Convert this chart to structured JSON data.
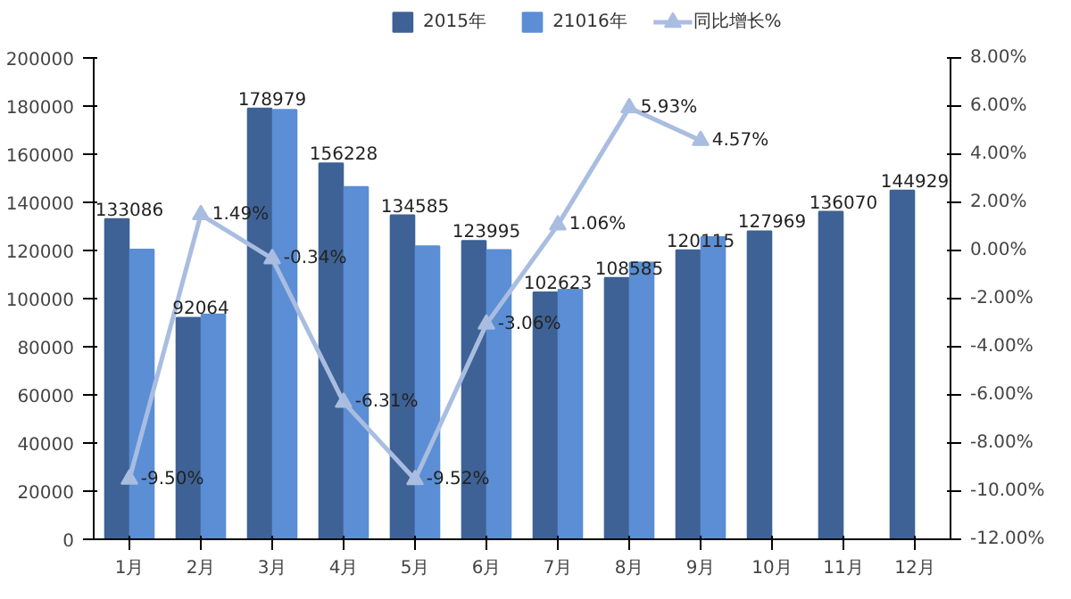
{
  "chart_data": {
    "type": "bar",
    "categories": [
      "1月",
      "2月",
      "3月",
      "4月",
      "5月",
      "6月",
      "7月",
      "8月",
      "9月",
      "10月",
      "11月",
      "12月"
    ],
    "series": [
      {
        "name": "2015年",
        "color": "#3e6296",
        "values": [
          133086,
          92064,
          178979,
          156228,
          134585,
          123995,
          102623,
          108585,
          120115,
          127969,
          136070,
          144929
        ],
        "value_labels": [
          "133086",
          "92064",
          "178979",
          "156228",
          "134585",
          "123995",
          "102623",
          "108585",
          "120115",
          "127969",
          "136070",
          "144929"
        ]
      },
      {
        "name": "21016年",
        "color": "#5b8ed4",
        "values": [
          120400,
          93400,
          178400,
          146400,
          121800,
          120200,
          103700,
          115000,
          125600,
          null,
          null,
          null
        ]
      },
      {
        "name": "同比增长%",
        "type": "line",
        "axis": "y2",
        "color": "#a9bde0",
        "marker": "triangle",
        "values": [
          -9.5,
          1.49,
          -0.34,
          -6.31,
          -9.52,
          -3.06,
          1.06,
          5.93,
          4.57,
          null,
          null,
          null
        ],
        "value_labels": [
          "-9.50%",
          "1.49%",
          "-0.34%",
          "-6.31%",
          "-9.52%",
          "-3.06%",
          "1.06%",
          "5.93%",
          "4.57%",
          null,
          null,
          null
        ]
      }
    ],
    "ylim": [
      0,
      200000
    ],
    "yticks": [
      0,
      20000,
      40000,
      60000,
      80000,
      100000,
      120000,
      140000,
      160000,
      180000,
      200000
    ],
    "y2lim": [
      -12,
      8
    ],
    "y2ticks": [
      {
        "value": -12,
        "label": "-12.00%"
      },
      {
        "value": -10,
        "label": "-10.00%"
      },
      {
        "value": -8,
        "label": "-8.00%"
      },
      {
        "value": -6,
        "label": "-6.00%"
      },
      {
        "value": -4,
        "label": "-4.00%"
      },
      {
        "value": -2,
        "label": "-2.00%"
      },
      {
        "value": 0,
        "label": "0.00%"
      },
      {
        "value": 2,
        "label": "2.00%"
      },
      {
        "value": 4,
        "label": "4.00%"
      },
      {
        "value": 6,
        "label": "6.00%"
      },
      {
        "value": 8,
        "label": "8.00%"
      }
    ],
    "grid": false,
    "legend": "top"
  }
}
